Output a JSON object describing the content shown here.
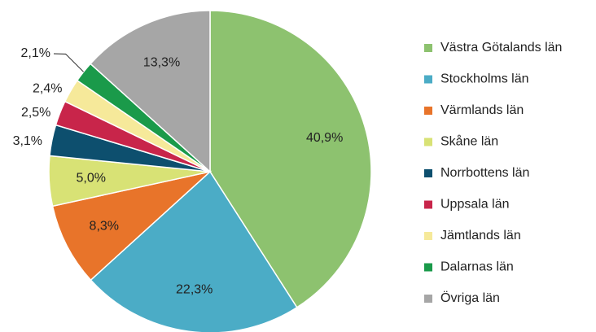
{
  "chart_data": {
    "type": "pie",
    "categories": [
      "Västra Götalands län",
      "Stockholms län",
      "Värmlands län",
      "Skåne län",
      "Norrbottens län",
      "Uppsala län",
      "Jämtlands län",
      "Dalarnas län",
      "Övriga län"
    ],
    "values": [
      40.9,
      22.3,
      8.3,
      5.0,
      3.1,
      2.5,
      2.4,
      2.1,
      13.3
    ],
    "value_labels": [
      "40,9%",
      "22,3%",
      "8,3%",
      "5,0%",
      "3,1%",
      "2,5%",
      "2,4%",
      "2,1%",
      "13,3%"
    ],
    "colors": [
      "#8dc26f",
      "#4bacc6",
      "#e8742a",
      "#d8e275",
      "#0d4f6e",
      "#c8254a",
      "#f6e99a",
      "#1a9a4a",
      "#a6a6a6"
    ],
    "legend": "right"
  }
}
